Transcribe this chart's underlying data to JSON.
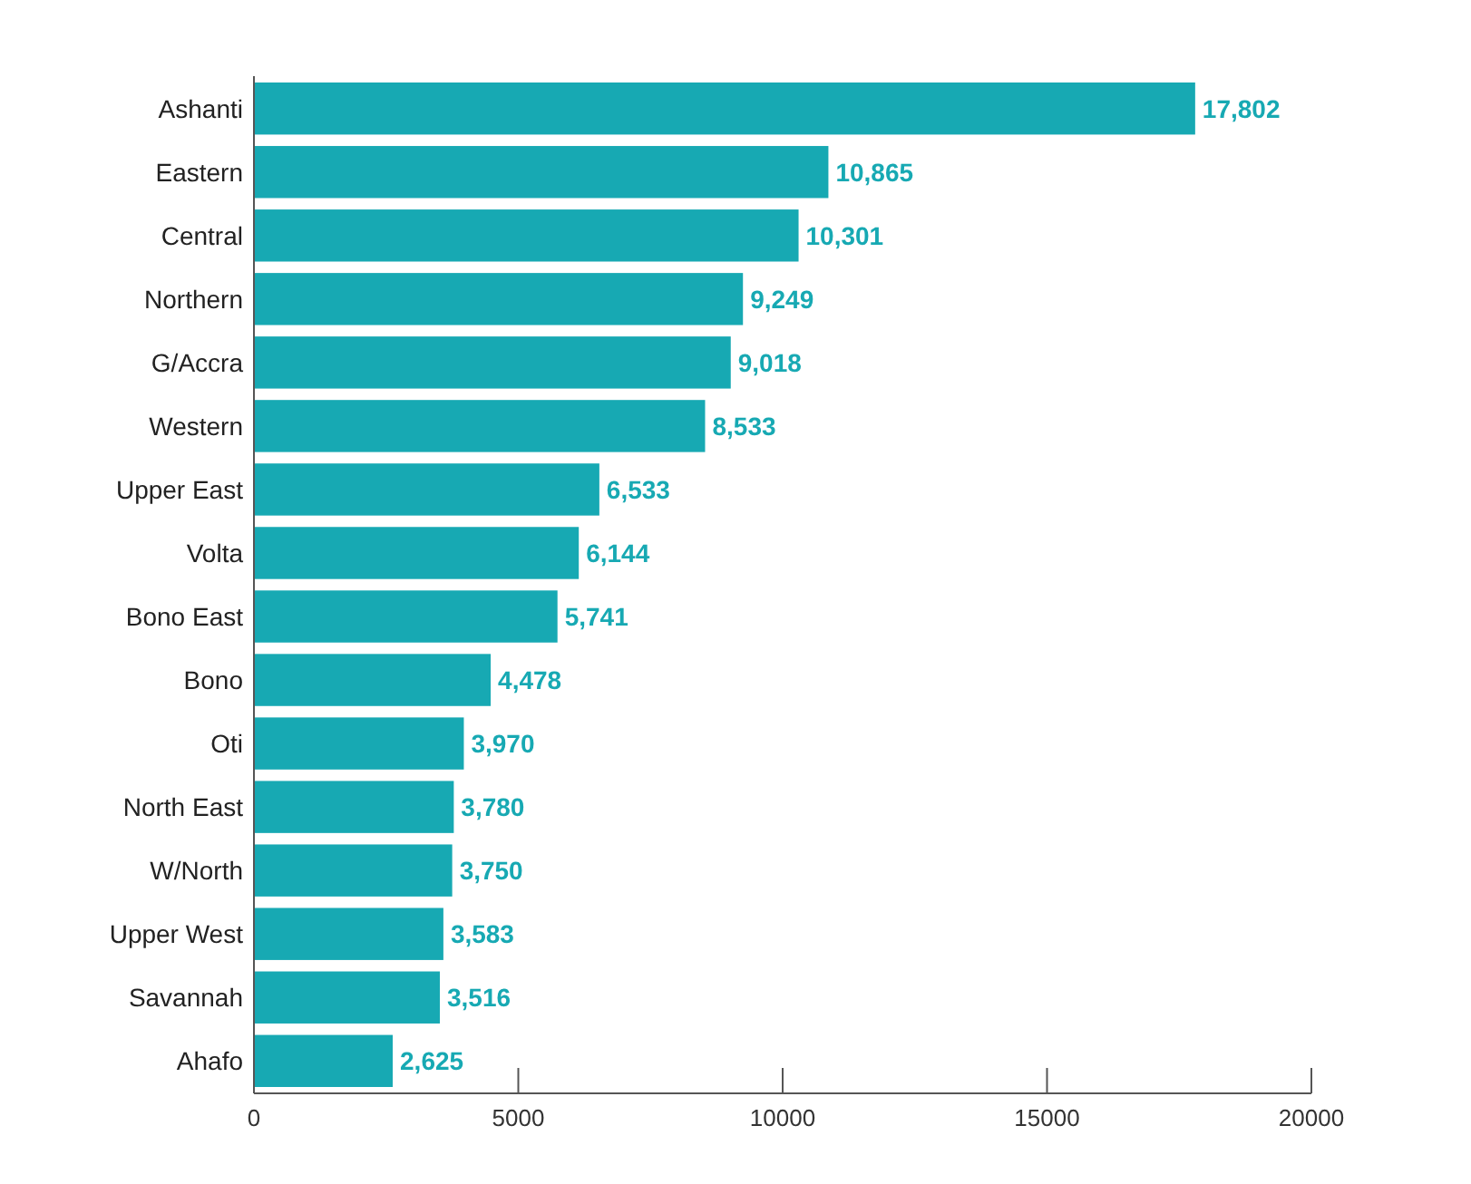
{
  "chart_data": {
    "type": "bar",
    "orientation": "horizontal",
    "categories": [
      "Ashanti",
      "Eastern",
      "Central",
      "Northern",
      "G/Accra",
      "Western",
      "Upper East",
      "Volta",
      "Bono East",
      "Bono",
      "Oti",
      "North East",
      "W/North",
      "Upper West",
      "Savannah",
      "Ahafo"
    ],
    "values": [
      17802,
      10865,
      10301,
      9249,
      9018,
      8533,
      6533,
      6144,
      5741,
      4478,
      3970,
      3780,
      3750,
      3583,
      3516,
      2625
    ],
    "value_labels": [
      "17,802",
      "10,865",
      "10,301",
      "9,249",
      "9,018",
      "8,533",
      "6,533",
      "6,144",
      "5,741",
      "4,478",
      "3,970",
      "3,780",
      "3,750",
      "3,583",
      "3,516",
      "2,625"
    ],
    "color": "#17a9b3",
    "xlim": [
      0,
      20000
    ],
    "xticks": [
      0,
      5000,
      10000,
      15000,
      20000
    ]
  }
}
